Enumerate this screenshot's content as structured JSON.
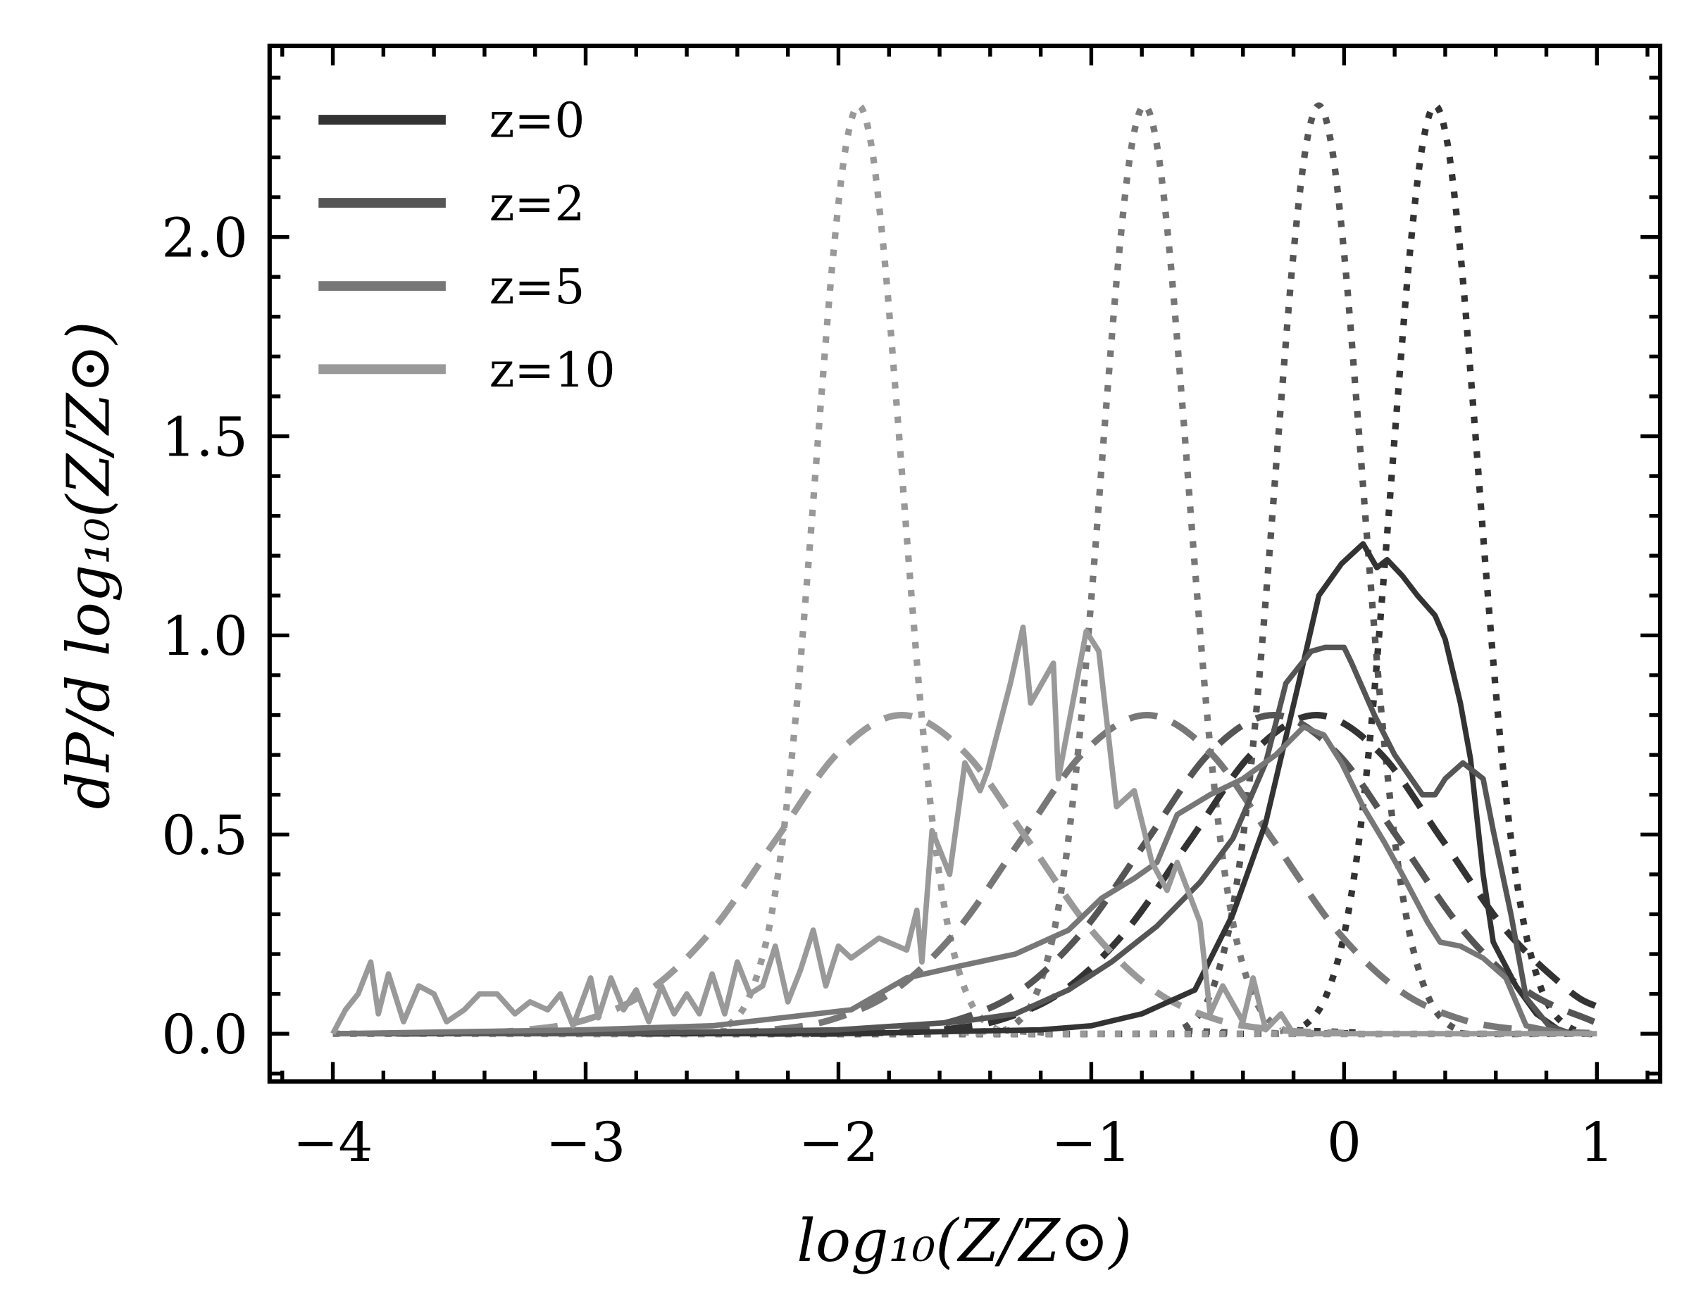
{
  "chart_data": {
    "type": "line",
    "title": "",
    "xlabel": "log₁₀(Z/Z⊙)",
    "ylabel": "dP/d log₁₀(Z/Z⊙)",
    "xlim": [
      -4.25,
      1.25
    ],
    "ylim": [
      -0.12,
      2.48
    ],
    "xticks": [
      -4,
      -3,
      -2,
      -1,
      0,
      1
    ],
    "xtick_labels": [
      "−4",
      "−3",
      "−2",
      "−1",
      "0",
      "1"
    ],
    "yticks": [
      0,
      0.5,
      1,
      1.5,
      2
    ],
    "ytick_labels": [
      "0.0",
      "0.5",
      "1.0",
      "1.5",
      "2.0"
    ],
    "x_minor_step": 0.2,
    "y_minor_step": 0.1,
    "grid": false,
    "legend_position": "top-left",
    "legend": [
      {
        "label": "z=0",
        "color": "#333333"
      },
      {
        "label": "z=2",
        "color": "#555555"
      },
      {
        "label": "z=5",
        "color": "#777777"
      },
      {
        "label": "z=10",
        "color": "#999999"
      }
    ],
    "series": [
      {
        "name": "z=0",
        "style": "solid",
        "color": "#333333",
        "x": [
          -4,
          -2,
          -1.2,
          -1.0,
          -0.8,
          -0.59,
          -0.44,
          -0.31,
          -0.18,
          -0.1,
          -0.01,
          0.075,
          0.13,
          0.17,
          0.23,
          0.29,
          0.36,
          0.4,
          0.46,
          0.5,
          0.55,
          0.59,
          0.68,
          0.76,
          0.85,
          0.9
        ],
        "y": [
          0,
          0,
          0.01,
          0.02,
          0.05,
          0.11,
          0.3,
          0.53,
          0.88,
          1.1,
          1.18,
          1.23,
          1.17,
          1.19,
          1.15,
          1.1,
          1.05,
          0.99,
          0.83,
          0.69,
          0.4,
          0.23,
          0.12,
          0.05,
          0.01,
          0
        ]
      },
      {
        "name": "z=2",
        "style": "solid",
        "color": "#555555",
        "x": [
          -4,
          -3,
          -2,
          -1.52,
          -1.3,
          -1.09,
          -0.92,
          -0.74,
          -0.57,
          -0.44,
          -0.31,
          -0.23,
          -0.13,
          -0.075,
          0,
          0.03,
          0.12,
          0.2,
          0.31,
          0.36,
          0.4,
          0.47,
          0.55,
          0.59,
          0.66,
          0.72,
          0.81,
          0.9
        ],
        "y": [
          0,
          0,
          0.01,
          0.03,
          0.05,
          0.11,
          0.18,
          0.27,
          0.38,
          0.49,
          0.68,
          0.88,
          0.96,
          0.97,
          0.97,
          0.93,
          0.8,
          0.7,
          0.6,
          0.6,
          0.64,
          0.68,
          0.64,
          0.51,
          0.3,
          0.09,
          0.02,
          0
        ]
      },
      {
        "name": "z=5",
        "style": "solid",
        "color": "#777777",
        "x": [
          -4,
          -3,
          -2.5,
          -1.95,
          -1.73,
          -1.52,
          -1.3,
          -1.09,
          -0.96,
          -0.83,
          -0.74,
          -0.66,
          -0.53,
          -0.4,
          -0.27,
          -0.16,
          -0.08,
          -0.01,
          0.075,
          0.16,
          0.23,
          0.33,
          0.38,
          0.46,
          0.55,
          0.64,
          0.72,
          0.8,
          0.9
        ],
        "y": [
          0,
          0.01,
          0.02,
          0.06,
          0.14,
          0.17,
          0.2,
          0.26,
          0.34,
          0.39,
          0.43,
          0.55,
          0.6,
          0.64,
          0.7,
          0.77,
          0.75,
          0.68,
          0.57,
          0.48,
          0.4,
          0.28,
          0.23,
          0.22,
          0.19,
          0.14,
          0.02,
          0.01,
          0
        ]
      },
      {
        "name": "z=10",
        "style": "solid",
        "color": "#999999",
        "x": [
          -4,
          -3.95,
          -3.9,
          -3.85,
          -3.82,
          -3.78,
          -3.72,
          -3.66,
          -3.6,
          -3.55,
          -3.48,
          -3.42,
          -3.35,
          -3.28,
          -3.22,
          -3.15,
          -3.1,
          -3.05,
          -2.98,
          -2.95,
          -2.9,
          -2.85,
          -2.8,
          -2.75,
          -2.7,
          -2.65,
          -2.6,
          -2.55,
          -2.5,
          -2.45,
          -2.4,
          -2.35,
          -2.3,
          -2.25,
          -2.2,
          -2.15,
          -2.1,
          -2.05,
          -2.0,
          -1.95,
          -1.84,
          -1.73,
          -1.69,
          -1.67,
          -1.63,
          -1.56,
          -1.5,
          -1.44,
          -1.41,
          -1.32,
          -1.27,
          -1.24,
          -1.15,
          -1.13,
          -1.02,
          -0.97,
          -0.9,
          -0.83,
          -0.76,
          -0.7,
          -0.66,
          -0.57,
          -0.53,
          -0.48,
          -0.4,
          -0.36,
          -0.31,
          -0.25,
          -0.2,
          1.0
        ],
        "y": [
          0,
          0.06,
          0.1,
          0.18,
          0.05,
          0.15,
          0.03,
          0.12,
          0.1,
          0.03,
          0.06,
          0.1,
          0.1,
          0.05,
          0.08,
          0.06,
          0.1,
          0.02,
          0.14,
          0.04,
          0.14,
          0.06,
          0.11,
          0.03,
          0.12,
          0.05,
          0.1,
          0.05,
          0.15,
          0.05,
          0.18,
          0.1,
          0.12,
          0.22,
          0.08,
          0.16,
          0.26,
          0.12,
          0.22,
          0.19,
          0.24,
          0.21,
          0.31,
          0.18,
          0.51,
          0.4,
          0.68,
          0.61,
          0.66,
          0.88,
          1.02,
          0.83,
          0.93,
          0.64,
          1.01,
          0.96,
          0.57,
          0.61,
          0.43,
          0.36,
          0.43,
          0.28,
          0.05,
          0.12,
          0.03,
          0.14,
          0.01,
          0.05,
          0,
          0
        ]
      },
      {
        "name": "z=0",
        "style": "dashed",
        "color": "#333333",
        "x": [
          -2.11,
          -1.86,
          -1.61,
          -1.36,
          -1.11,
          -0.86,
          -0.61,
          -0.36,
          -0.11,
          0.14,
          0.39,
          0.64,
          0.89,
          1.0
        ],
        "y": [
          0,
          0.002,
          0.009,
          0.035,
          0.108,
          0.26,
          0.485,
          0.706,
          0.8,
          0.706,
          0.485,
          0.26,
          0.108,
          0.068
        ]
      },
      {
        "name": "z=2",
        "style": "dashed",
        "color": "#555555",
        "x": [
          -2.28,
          -2.03,
          -1.78,
          -1.53,
          -1.28,
          -1.03,
          -0.78,
          -0.53,
          -0.28,
          -0.03,
          0.22,
          0.47,
          0.72,
          0.97,
          1.0
        ],
        "y": [
          0,
          0.002,
          0.009,
          0.035,
          0.108,
          0.26,
          0.485,
          0.706,
          0.8,
          0.706,
          0.485,
          0.26,
          0.108,
          0.035,
          0.03
        ]
      },
      {
        "name": "z=5",
        "style": "dashed",
        "color": "#777777",
        "x": [
          -2.78,
          -2.53,
          -2.28,
          -2.03,
          -1.78,
          -1.53,
          -1.28,
          -1.03,
          -0.78,
          -0.53,
          -0.28,
          -0.03,
          0.22,
          0.47,
          0.72,
          0.97
        ],
        "y": [
          0,
          0.002,
          0.009,
          0.035,
          0.108,
          0.26,
          0.485,
          0.706,
          0.8,
          0.706,
          0.485,
          0.26,
          0.108,
          0.035,
          0.009,
          0.002
        ]
      },
      {
        "name": "z=10",
        "style": "dashed",
        "color": "#999999",
        "x": [
          -3.75,
          -3.5,
          -3.25,
          -3.0,
          -2.75,
          -2.5,
          -2.25,
          -2.0,
          -1.75,
          -1.5,
          -1.25,
          -1.0,
          -0.75,
          -0.5,
          -0.25,
          0.0
        ],
        "y": [
          0,
          0.002,
          0.009,
          0.035,
          0.108,
          0.26,
          0.485,
          0.706,
          0.8,
          0.706,
          0.485,
          0.26,
          0.108,
          0.035,
          0.009,
          0.002
        ]
      },
      {
        "name": "z=0",
        "style": "dotted",
        "color": "#333333",
        "x": [
          -4,
          -0.24,
          -0.19,
          -0.14,
          -0.09,
          -0.04,
          0.01,
          0.06,
          0.11,
          0.16,
          0.21,
          0.26,
          0.31,
          0.36,
          0.41,
          0.46,
          0.51,
          0.56,
          0.61,
          0.66,
          0.71,
          0.76,
          0.81,
          0.86,
          0.91,
          0.96,
          1.0
        ],
        "y": [
          0,
          0,
          0.01,
          0.03,
          0.07,
          0.15,
          0.28,
          0.49,
          0.79,
          1.17,
          1.58,
          1.96,
          2.23,
          2.33,
          2.23,
          1.96,
          1.58,
          1.17,
          0.79,
          0.49,
          0.28,
          0.15,
          0.07,
          0.03,
          0.01,
          0,
          0
        ]
      },
      {
        "name": "z=2",
        "style": "dotted",
        "color": "#555555",
        "x": [
          -4,
          -0.7,
          -0.65,
          -0.6,
          -0.55,
          -0.5,
          -0.45,
          -0.4,
          -0.35,
          -0.3,
          -0.25,
          -0.2,
          -0.15,
          -0.1,
          -0.05,
          0.0,
          0.05,
          0.1,
          0.15,
          0.2,
          0.25,
          0.3,
          0.35,
          0.4,
          0.45,
          0.5,
          1.0
        ],
        "y": [
          0,
          0,
          0.01,
          0.03,
          0.07,
          0.15,
          0.28,
          0.49,
          0.79,
          1.17,
          1.58,
          1.96,
          2.23,
          2.33,
          2.23,
          1.96,
          1.58,
          1.17,
          0.79,
          0.49,
          0.28,
          0.15,
          0.07,
          0.03,
          0.01,
          0,
          0
        ]
      },
      {
        "name": "z=5",
        "style": "dotted",
        "color": "#777777",
        "x": [
          -4,
          -1.39,
          -1.34,
          -1.29,
          -1.24,
          -1.19,
          -1.14,
          -1.09,
          -1.04,
          -0.99,
          -0.94,
          -0.89,
          -0.84,
          -0.79,
          -0.74,
          -0.69,
          -0.64,
          -0.59,
          -0.54,
          -0.49,
          -0.44,
          -0.39,
          -0.34,
          -0.29,
          -0.24,
          -0.19,
          1.0
        ],
        "y": [
          0,
          0,
          0.01,
          0.03,
          0.07,
          0.15,
          0.28,
          0.49,
          0.79,
          1.17,
          1.58,
          1.96,
          2.23,
          2.33,
          2.23,
          1.96,
          1.58,
          1.17,
          0.79,
          0.49,
          0.28,
          0.15,
          0.07,
          0.03,
          0.01,
          0,
          0
        ]
      },
      {
        "name": "z=10",
        "style": "dotted",
        "color": "#999999",
        "x": [
          -4,
          -2.52,
          -2.47,
          -2.42,
          -2.37,
          -2.32,
          -2.27,
          -2.22,
          -2.17,
          -2.12,
          -2.07,
          -2.02,
          -1.97,
          -1.92,
          -1.87,
          -1.82,
          -1.77,
          -1.72,
          -1.67,
          -1.62,
          -1.57,
          -1.52,
          -1.47,
          -1.42,
          -1.37,
          -1.32,
          1.0
        ],
        "y": [
          0,
          0,
          0.01,
          0.03,
          0.07,
          0.15,
          0.28,
          0.49,
          0.79,
          1.17,
          1.58,
          1.96,
          2.23,
          2.33,
          2.23,
          1.96,
          1.58,
          1.17,
          0.79,
          0.49,
          0.28,
          0.15,
          0.07,
          0.03,
          0.01,
          0,
          0
        ]
      }
    ]
  }
}
